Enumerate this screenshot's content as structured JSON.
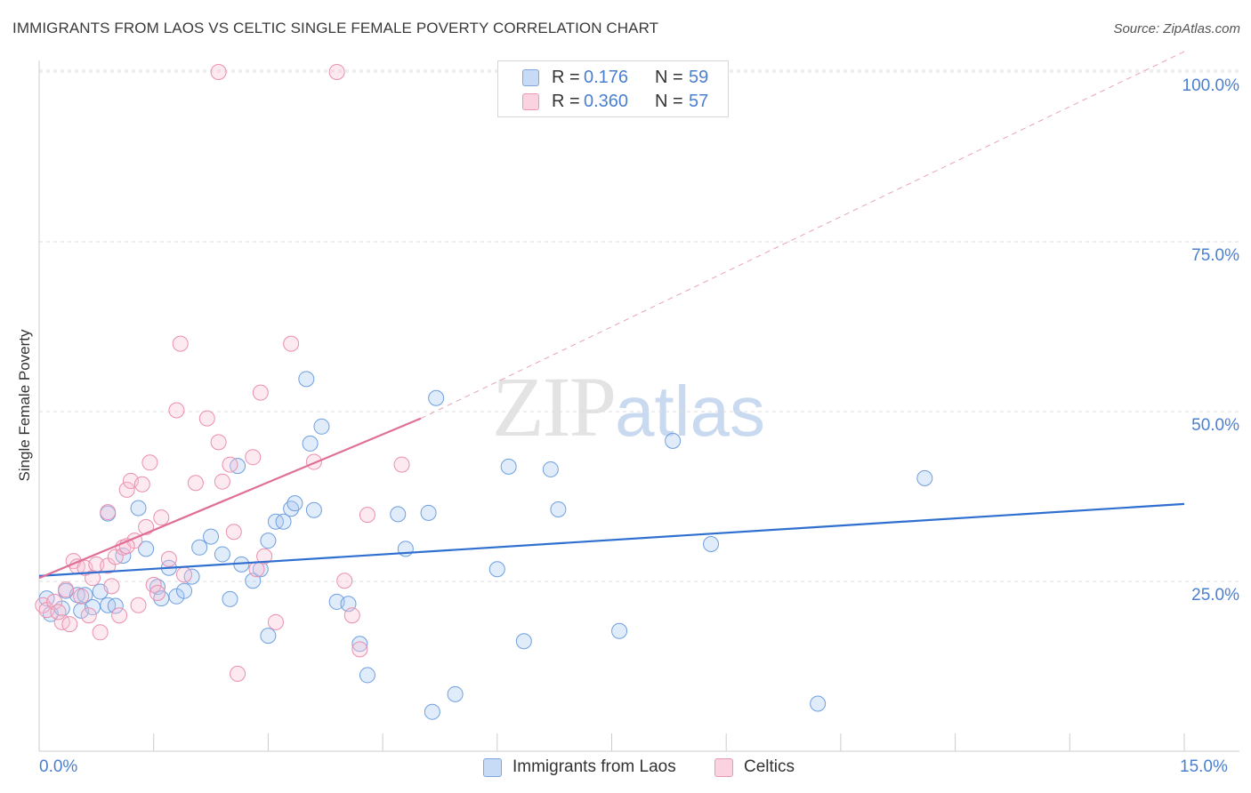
{
  "header": {
    "title": "IMMIGRANTS FROM LAOS VS CELTIC SINGLE FEMALE POVERTY CORRELATION CHART",
    "source": "Source: ZipAtlas.com"
  },
  "watermark": {
    "zip": "ZIP",
    "atlas": "atlas"
  },
  "legend": {
    "rows": [
      {
        "r_label": "R =",
        "r_value": "0.176",
        "n_label": "N =",
        "n_value": "59",
        "color": "#a9c8f2",
        "border": "#7ea6dd"
      },
      {
        "r_label": "R =",
        "r_value": "0.360",
        "n_label": "N =",
        "n_value": "57",
        "color": "#f9c4d5",
        "border": "#e99ab3"
      }
    ]
  },
  "bottom_legend": {
    "series1": "Immigrants from Laos",
    "series2": "Celtics"
  },
  "chart_data": {
    "type": "scatter",
    "title": "IMMIGRANTS FROM LAOS VS CELTIC SINGLE FEMALE POVERTY CORRELATION CHART",
    "xlabel": "",
    "ylabel": "Single Female Poverty",
    "xlim": [
      0,
      15
    ],
    "ylim": [
      0,
      100
    ],
    "x_tick_labels": {
      "min": "0.0%",
      "max": "15.0%"
    },
    "y_tick_labels": [
      {
        "value": 100,
        "label": "100.0%"
      },
      {
        "value": 75,
        "label": "75.0%"
      },
      {
        "value": 50,
        "label": "50.0%"
      },
      {
        "value": 25,
        "label": "25.0%"
      }
    ],
    "grid": true,
    "series": [
      {
        "name": "Immigrants from Laos",
        "color": "#6d9fe0",
        "fill": "rgba(169,200,242,0.35)",
        "trend": {
          "x0": 0,
          "y0": 25.8,
          "x1": 15,
          "y1": 36.4,
          "color": "#2f6fcf"
        },
        "points": [
          [
            0.1,
            22.5
          ],
          [
            0.15,
            20.2
          ],
          [
            0.3,
            21.0
          ],
          [
            0.35,
            23.6
          ],
          [
            0.5,
            23.0
          ],
          [
            0.55,
            20.7
          ],
          [
            0.6,
            23.0
          ],
          [
            0.7,
            21.2
          ],
          [
            0.8,
            23.5
          ],
          [
            0.9,
            21.5
          ],
          [
            1.0,
            21.4
          ],
          [
            1.1,
            28.8
          ],
          [
            1.3,
            35.8
          ],
          [
            1.4,
            29.8
          ],
          [
            1.55,
            24.2
          ],
          [
            1.6,
            22.5
          ],
          [
            1.8,
            22.8
          ],
          [
            1.9,
            23.6
          ],
          [
            2.0,
            25.7
          ],
          [
            2.1,
            30.0
          ],
          [
            2.25,
            31.6
          ],
          [
            2.4,
            29.0
          ],
          [
            2.5,
            22.4
          ],
          [
            2.6,
            42.0
          ],
          [
            2.65,
            27.5
          ],
          [
            2.8,
            25.1
          ],
          [
            2.9,
            26.8
          ],
          [
            3.0,
            31.0
          ],
          [
            3.1,
            33.8
          ],
          [
            3.2,
            33.8
          ],
          [
            3.3,
            35.7
          ],
          [
            3.35,
            36.5
          ],
          [
            3.5,
            54.8
          ],
          [
            3.55,
            45.3
          ],
          [
            3.6,
            35.5
          ],
          [
            3.7,
            47.8
          ],
          [
            3.9,
            22.0
          ],
          [
            4.05,
            21.7
          ],
          [
            4.2,
            15.8
          ],
          [
            4.3,
            11.2
          ],
          [
            4.7,
            34.9
          ],
          [
            4.8,
            29.8
          ],
          [
            5.1,
            35.1
          ],
          [
            5.15,
            5.8
          ],
          [
            5.2,
            52.0
          ],
          [
            5.45,
            8.4
          ],
          [
            6.0,
            26.8
          ],
          [
            6.15,
            41.9
          ],
          [
            6.35,
            16.2
          ],
          [
            6.7,
            41.5
          ],
          [
            6.8,
            35.6
          ],
          [
            7.6,
            17.7
          ],
          [
            8.3,
            45.7
          ],
          [
            8.8,
            30.5
          ],
          [
            10.2,
            7.0
          ],
          [
            11.6,
            40.2
          ],
          [
            1.7,
            27.0
          ],
          [
            0.9,
            35.0
          ],
          [
            3.0,
            17.0
          ]
        ]
      },
      {
        "name": "Celtics",
        "color": "#ea8fae",
        "fill": "rgba(249,196,213,0.35)",
        "trend": {
          "x0": 0,
          "y0": 25.5,
          "x1": 5.0,
          "y1": 49.0,
          "dash_x1": 15,
          "dash_y1": 103.0,
          "color": "#e06f97"
        },
        "points": [
          [
            0.05,
            21.5
          ],
          [
            0.1,
            20.8
          ],
          [
            0.2,
            22.0
          ],
          [
            0.3,
            19.0
          ],
          [
            0.35,
            23.8
          ],
          [
            0.4,
            18.7
          ],
          [
            0.45,
            28.0
          ],
          [
            0.5,
            27.2
          ],
          [
            0.6,
            27.0
          ],
          [
            0.65,
            20.0
          ],
          [
            0.7,
            25.5
          ],
          [
            0.75,
            27.5
          ],
          [
            0.8,
            17.5
          ],
          [
            0.9,
            27.3
          ],
          [
            0.9,
            35.2
          ],
          [
            0.95,
            24.3
          ],
          [
            1.0,
            28.6
          ],
          [
            1.05,
            20.0
          ],
          [
            1.1,
            30.0
          ],
          [
            1.15,
            38.5
          ],
          [
            1.2,
            39.8
          ],
          [
            1.25,
            31.0
          ],
          [
            1.3,
            21.5
          ],
          [
            1.35,
            39.3
          ],
          [
            1.4,
            33.0
          ],
          [
            1.45,
            42.5
          ],
          [
            1.5,
            24.5
          ],
          [
            1.55,
            23.3
          ],
          [
            1.6,
            34.4
          ],
          [
            1.7,
            28.3
          ],
          [
            1.8,
            50.2
          ],
          [
            1.85,
            60.0
          ],
          [
            1.9,
            26.0
          ],
          [
            2.05,
            39.5
          ],
          [
            2.2,
            49.0
          ],
          [
            2.35,
            45.5
          ],
          [
            2.4,
            39.7
          ],
          [
            2.5,
            42.2
          ],
          [
            2.55,
            32.3
          ],
          [
            2.6,
            11.4
          ],
          [
            2.8,
            43.3
          ],
          [
            2.85,
            26.8
          ],
          [
            2.9,
            52.8
          ],
          [
            2.95,
            28.7
          ],
          [
            3.1,
            19.0
          ],
          [
            3.3,
            60.0
          ],
          [
            3.6,
            42.6
          ],
          [
            3.9,
            100.0
          ],
          [
            4.0,
            25.1
          ],
          [
            4.1,
            20.0
          ],
          [
            4.2,
            15.0
          ],
          [
            4.3,
            34.8
          ],
          [
            4.75,
            42.2
          ],
          [
            2.35,
            100.0
          ],
          [
            0.55,
            22.8
          ],
          [
            0.25,
            20.5
          ],
          [
            1.15,
            30.2
          ]
        ]
      }
    ]
  }
}
